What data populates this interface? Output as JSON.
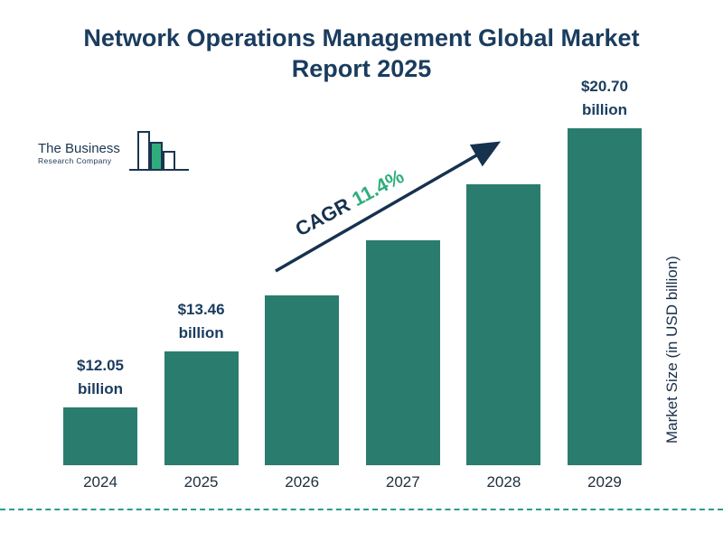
{
  "title": "Network Operations Management Global Market Report 2025",
  "logo": {
    "line1": "The Business",
    "line2": "Research Company"
  },
  "cagr": {
    "prefix": "CAGR ",
    "value": "11.4%"
  },
  "y_axis_label": "Market Size (in USD billion)",
  "colors": {
    "bar": "#2a7d6e",
    "title": "#1a3c5e",
    "cagr_green": "#2fae7c",
    "arrow_navy": "#16324f",
    "dashed_line": "#2a9d8f"
  },
  "chart_data": {
    "type": "bar",
    "title": "Network Operations Management Global Market Report 2025",
    "categories": [
      "2024",
      "2025",
      "2026",
      "2027",
      "2028",
      "2029"
    ],
    "values": [
      12.05,
      13.46,
      15.0,
      16.71,
      18.61,
      20.7
    ],
    "data_labels": [
      "$12.05 billion",
      "$13.46 billion",
      null,
      null,
      null,
      "$20.70 billion"
    ],
    "xlabel": "",
    "ylabel": "Market Size (in USD billion)",
    "annotation": "CAGR 11.4%",
    "legend": false,
    "grid": false
  }
}
